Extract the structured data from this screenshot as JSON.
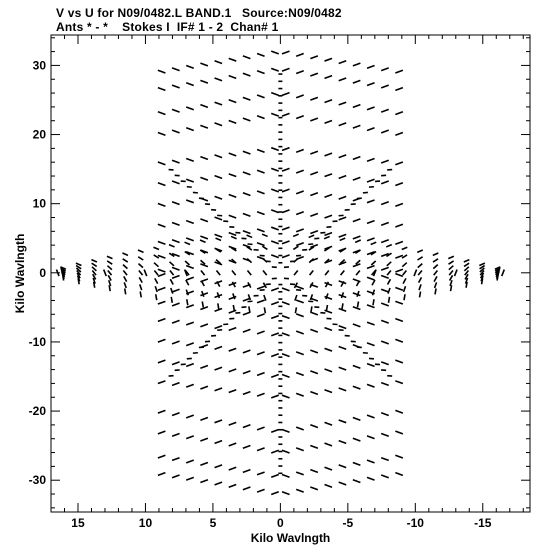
{
  "header": {
    "line1": "V vs U for N09/0482.L BAND.1   Source:N09/0482",
    "line2": "Ants * - *    Stokes I  IF# 1 - 2  Chan# 1"
  },
  "chart_data": {
    "type": "scatter",
    "title": "V vs U for N09/0482.L BAND.1   Source:N09/0482",
    "subtitle": "Ants * - *    Stokes I  IF# 1 - 2  Chan# 1",
    "xlabel": "Kilo Wavlngth",
    "ylabel": "Kilo Wavlngth",
    "xlim": [
      17.0,
      -18.5
    ],
    "ylim": [
      -34.6,
      34.4
    ],
    "x_ticks": [
      15,
      10,
      5,
      0,
      -5,
      -10,
      -15
    ],
    "y_ticks": [
      30,
      20,
      10,
      0,
      -10,
      -20,
      -30
    ],
    "x_tick_labels": [
      "15",
      "10",
      "5",
      "0",
      "-5",
      "-10",
      "-15"
    ],
    "y_tick_labels": [
      "30",
      "20",
      "10",
      "0",
      "-10",
      "-20",
      "-30"
    ],
    "grid": false,
    "marker": "short dash segments (uv tracks)",
    "color": "#000000",
    "description_pattern": "symmetric snapshot uv coverage with six radial arms at 0, ±60, ±120, 180 degrees",
    "arms": [
      {
        "name": "vertical",
        "direction_deg": 90,
        "radii": [
          1.5,
          3,
          4.5,
          6,
          8,
          10,
          12,
          14,
          17,
          19,
          21,
          23,
          25,
          27.5,
          30
        ]
      },
      {
        "name": "horizontal",
        "direction_deg": 0,
        "radii": [
          1,
          2,
          3,
          4,
          5,
          6,
          7,
          8,
          9,
          10,
          11,
          12,
          13.5,
          15,
          17
        ]
      },
      {
        "name": "diagonal-60",
        "direction_deg": 60,
        "radii": [
          2,
          4,
          6,
          8,
          10,
          12,
          14,
          17,
          20,
          23,
          26,
          30,
          33
        ]
      },
      {
        "name": "diagonal-120",
        "direction_deg": 120,
        "radii": [
          2,
          4,
          6,
          8,
          10,
          12,
          14,
          17,
          20,
          23,
          26,
          30,
          33
        ]
      }
    ],
    "series": [
      {
        "points": [
          {
            "x": 0,
            "y": 30.5
          },
          {
            "x": 0,
            "y": 27.5
          },
          {
            "x": 0,
            "y": 23
          },
          {
            "x": 0,
            "y": 19
          },
          {
            "x": 0,
            "y": 14
          },
          {
            "x": 0,
            "y": 10
          },
          {
            "x": 0,
            "y": 6
          },
          {
            "x": 0,
            "y": 3
          },
          {
            "x": 0,
            "y": -3
          },
          {
            "x": 0,
            "y": -6
          },
          {
            "x": 0,
            "y": -10
          },
          {
            "x": 0,
            "y": -14
          },
          {
            "x": 0,
            "y": -19
          },
          {
            "x": 0,
            "y": -23
          },
          {
            "x": 0,
            "y": -27.5
          },
          {
            "x": 0,
            "y": -30.5
          },
          {
            "x": 16.5,
            "y": 0
          },
          {
            "x": 13,
            "y": 0
          },
          {
            "x": 10,
            "y": 0
          },
          {
            "x": 7,
            "y": 0
          },
          {
            "x": -7,
            "y": 0
          },
          {
            "x": -10,
            "y": 0
          },
          {
            "x": -13,
            "y": 0
          },
          {
            "x": -16.5,
            "y": 0
          },
          {
            "x": 9,
            "y": 32.5
          },
          {
            "x": 8.5,
            "y": 26
          },
          {
            "x": 8.5,
            "y": 18.5
          },
          {
            "x": 8.5,
            "y": 12
          },
          {
            "x": -9,
            "y": 32.5
          },
          {
            "x": -8.5,
            "y": 26
          },
          {
            "x": -8.5,
            "y": 18.5
          },
          {
            "x": -8.5,
            "y": 12
          },
          {
            "x": 9,
            "y": -32.5
          },
          {
            "x": 8.5,
            "y": -26
          },
          {
            "x": 8.5,
            "y": -18.5
          },
          {
            "x": 8.5,
            "y": -12
          },
          {
            "x": -9,
            "y": -32.5
          },
          {
            "x": -8.5,
            "y": -26
          },
          {
            "x": -8.5,
            "y": -18.5
          },
          {
            "x": -8.5,
            "y": -12
          }
        ]
      }
    ]
  }
}
